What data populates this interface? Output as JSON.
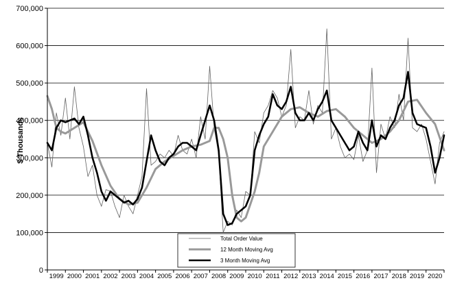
{
  "chart_data": {
    "type": "line",
    "title": "",
    "xlabel": "",
    "ylabel": "$ Thousands",
    "ylim": [
      0,
      700000
    ],
    "yticks": [
      "0",
      "100,000",
      "200,000",
      "300,000",
      "400,000",
      "500,000",
      "600,000",
      "700,000"
    ],
    "xlim": [
      1999.0,
      2021.0
    ],
    "xticks": [
      "1999",
      "2000",
      "2001",
      "2002",
      "2003",
      "2004",
      "2005",
      "2006",
      "2007",
      "2008",
      "2009",
      "2010",
      "2011",
      "2012",
      "2013",
      "2014",
      "2015",
      "2016",
      "2017",
      "2018",
      "2019",
      "2020"
    ],
    "grid": "horizontal",
    "legend_position": "bottom-center",
    "series": [
      {
        "name": "Total Order Value",
        "color": "#606060",
        "x": [
          1999.0,
          1999.25,
          1999.5,
          1999.75,
          2000.0,
          2000.25,
          2000.5,
          2000.75,
          2001.0,
          2001.25,
          2001.5,
          2001.75,
          2002.0,
          2002.25,
          2002.5,
          2002.75,
          2003.0,
          2003.25,
          2003.5,
          2003.75,
          2004.0,
          2004.25,
          2004.5,
          2004.75,
          2005.0,
          2005.25,
          2005.5,
          2005.75,
          2006.0,
          2006.25,
          2006.5,
          2006.75,
          2007.0,
          2007.25,
          2007.5,
          2007.75,
          2008.0,
          2008.25,
          2008.5,
          2008.75,
          2009.0,
          2009.25,
          2009.5,
          2009.75,
          2010.0,
          2010.25,
          2010.5,
          2010.75,
          2011.0,
          2011.25,
          2011.5,
          2011.75,
          2012.0,
          2012.25,
          2012.5,
          2012.75,
          2013.0,
          2013.25,
          2013.5,
          2013.75,
          2014.0,
          2014.25,
          2014.5,
          2014.75,
          2015.0,
          2015.25,
          2015.5,
          2015.75,
          2016.0,
          2016.25,
          2016.5,
          2016.75,
          2017.0,
          2017.25,
          2017.5,
          2017.75,
          2018.0,
          2018.25,
          2018.5,
          2018.75,
          2019.0,
          2019.25,
          2019.5,
          2019.75,
          2020.0,
          2020.25,
          2020.5,
          2020.75,
          2021.0
        ],
        "values": [
          340000,
          275000,
          420000,
          360000,
          460000,
          350000,
          490000,
          380000,
          330000,
          250000,
          280000,
          200000,
          170000,
          215000,
          210000,
          170000,
          140000,
          200000,
          170000,
          150000,
          200000,
          250000,
          485000,
          280000,
          290000,
          310000,
          300000,
          320000,
          305000,
          360000,
          320000,
          310000,
          350000,
          300000,
          410000,
          350000,
          545000,
          380000,
          310000,
          100000,
          130000,
          120000,
          160000,
          140000,
          210000,
          200000,
          370000,
          340000,
          420000,
          440000,
          480000,
          460000,
          410000,
          440000,
          590000,
          380000,
          410000,
          400000,
          480000,
          390000,
          440000,
          420000,
          645000,
          350000,
          380000,
          330000,
          300000,
          310000,
          295000,
          360000,
          290000,
          320000,
          540000,
          260000,
          390000,
          350000,
          410000,
          380000,
          470000,
          400000,
          620000,
          380000,
          370000,
          390000,
          350000,
          290000,
          230000,
          340000,
          370000
        ]
      },
      {
        "name": "12 Month Moving Avg",
        "color": "#999999",
        "x": [
          1999.0,
          1999.25,
          1999.5,
          1999.75,
          2000.0,
          2000.5,
          2001.0,
          2001.5,
          2002.0,
          2002.5,
          2003.0,
          2003.5,
          2004.0,
          2004.5,
          2005.0,
          2005.5,
          2006.0,
          2006.5,
          2007.0,
          2007.5,
          2008.0,
          2008.25,
          2008.5,
          2008.75,
          2009.0,
          2009.25,
          2009.5,
          2009.75,
          2010.0,
          2010.25,
          2010.5,
          2010.75,
          2011.0,
          2011.5,
          2012.0,
          2012.5,
          2013.0,
          2013.5,
          2014.0,
          2014.5,
          2015.0,
          2015.5,
          2016.0,
          2016.5,
          2017.0,
          2017.5,
          2018.0,
          2018.5,
          2019.0,
          2019.5,
          2020.0,
          2020.5,
          2021.0
        ],
        "values": [
          465000,
          430000,
          380000,
          370000,
          365000,
          380000,
          395000,
          345000,
          280000,
          225000,
          190000,
          175000,
          180000,
          220000,
          270000,
          290000,
          305000,
          320000,
          330000,
          335000,
          345000,
          380000,
          380000,
          350000,
          300000,
          200000,
          140000,
          130000,
          140000,
          175000,
          210000,
          260000,
          330000,
          370000,
          410000,
          430000,
          435000,
          420000,
          410000,
          425000,
          430000,
          410000,
          380000,
          360000,
          340000,
          350000,
          370000,
          400000,
          450000,
          455000,
          420000,
          390000,
          320000
        ]
      },
      {
        "name": "3 Month Moving Avg",
        "color": "#000000",
        "x": [
          1999.0,
          1999.25,
          1999.5,
          1999.75,
          2000.0,
          2000.25,
          2000.5,
          2000.75,
          2001.0,
          2001.25,
          2001.5,
          2001.75,
          2002.0,
          2002.25,
          2002.5,
          2002.75,
          2003.0,
          2003.25,
          2003.5,
          2003.75,
          2004.0,
          2004.25,
          2004.5,
          2004.75,
          2005.0,
          2005.25,
          2005.5,
          2005.75,
          2006.0,
          2006.25,
          2006.5,
          2006.75,
          2007.0,
          2007.25,
          2007.5,
          2007.75,
          2008.0,
          2008.25,
          2008.5,
          2008.75,
          2009.0,
          2009.25,
          2009.5,
          2009.75,
          2010.0,
          2010.25,
          2010.5,
          2010.75,
          2011.0,
          2011.25,
          2011.5,
          2011.75,
          2012.0,
          2012.25,
          2012.5,
          2012.75,
          2013.0,
          2013.25,
          2013.5,
          2013.75,
          2014.0,
          2014.25,
          2014.5,
          2014.75,
          2015.0,
          2015.25,
          2015.5,
          2015.75,
          2016.0,
          2016.25,
          2016.5,
          2016.75,
          2017.0,
          2017.25,
          2017.5,
          2017.75,
          2018.0,
          2018.25,
          2018.5,
          2018.75,
          2019.0,
          2019.25,
          2019.5,
          2019.75,
          2020.0,
          2020.25,
          2020.5,
          2020.75,
          2021.0
        ],
        "values": [
          340000,
          320000,
          380000,
          400000,
          395000,
          400000,
          405000,
          390000,
          410000,
          360000,
          300000,
          260000,
          210000,
          185000,
          210000,
          200000,
          190000,
          180000,
          185000,
          175000,
          190000,
          220000,
          290000,
          360000,
          320000,
          290000,
          280000,
          300000,
          310000,
          330000,
          340000,
          340000,
          330000,
          320000,
          360000,
          400000,
          440000,
          400000,
          320000,
          150000,
          120000,
          125000,
          150000,
          160000,
          170000,
          200000,
          320000,
          360000,
          390000,
          410000,
          470000,
          440000,
          430000,
          450000,
          490000,
          420000,
          400000,
          400000,
          420000,
          400000,
          430000,
          450000,
          480000,
          400000,
          380000,
          360000,
          340000,
          320000,
          330000,
          370000,
          340000,
          320000,
          400000,
          330000,
          360000,
          350000,
          380000,
          400000,
          440000,
          460000,
          530000,
          420000,
          390000,
          385000,
          380000,
          330000,
          260000,
          300000,
          360000
        ]
      }
    ]
  }
}
